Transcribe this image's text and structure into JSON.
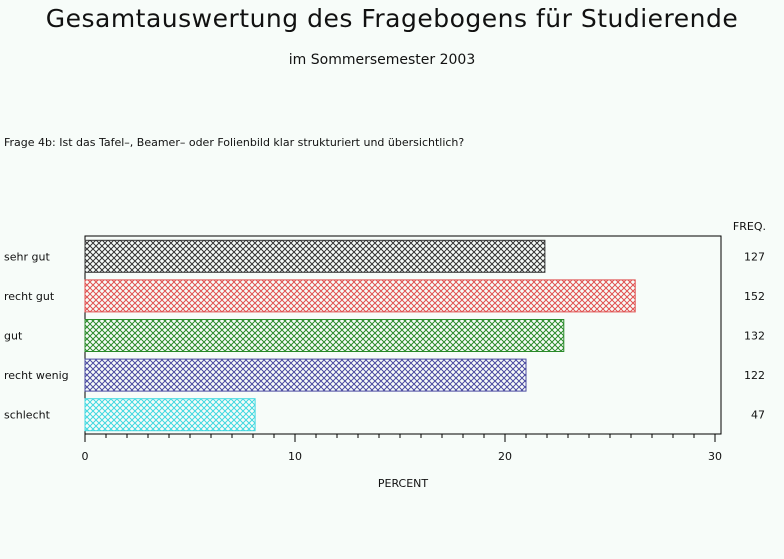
{
  "header": {
    "title": "Gesamtauswertung des Fragebogens für Studierende",
    "subtitle": "im Sommersemester 2003",
    "question": "Frage 4b: Ist das Tafel–, Beamer– oder Folienbild klar strukturiert und übersichtlich?"
  },
  "chart_data": {
    "type": "bar",
    "orientation": "horizontal",
    "categories": [
      "sehr gut",
      "recht gut",
      "gut",
      "recht wenig",
      "schlecht"
    ],
    "values": [
      21.9,
      26.2,
      22.8,
      21.0,
      8.1
    ],
    "freq_label": "FREQ.",
    "frequencies": [
      "127",
      "152",
      "132",
      "122",
      "47"
    ],
    "xlabel": "PERCENT",
    "xlim": [
      0,
      30
    ],
    "xticks": [
      "0",
      "10",
      "20",
      "30"
    ],
    "grid": false,
    "bar_colors": [
      "#333333",
      "#e05050",
      "#2a8a2a",
      "#4a4aa0",
      "#40d8e0"
    ]
  }
}
